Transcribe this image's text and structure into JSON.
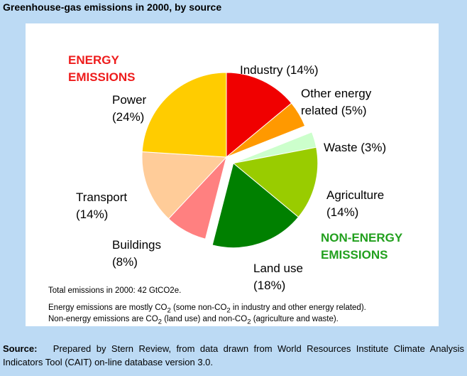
{
  "title": "Greenhouse-gas emissions in 2000, by source",
  "group_labels": {
    "energy_line1": "ENERGY",
    "energy_line2": "EMISSIONS",
    "energy_color": "#ee1c1c",
    "nonenergy_line1": "NON-ENERGY",
    "nonenergy_line2": "EMISSIONS",
    "nonenergy_color": "#22a01e"
  },
  "chart_data": {
    "type": "pie",
    "title": "Greenhouse-gas emissions in 2000, by source",
    "units": "percent of total",
    "slices": [
      {
        "name": "Industry",
        "value": 14,
        "label_line1": "Industry (14%)",
        "label_line2": "",
        "color": "#f00000",
        "group": "energy"
      },
      {
        "name": "Other energy related",
        "value": 5,
        "label_line1": "Other energy",
        "label_line2": "related (5%)",
        "color": "#ff9900",
        "group": "energy"
      },
      {
        "name": "Waste",
        "value": 3,
        "label_line1": "Waste (3%)",
        "label_line2": "",
        "color": "#ccffcc",
        "group": "non-energy"
      },
      {
        "name": "Agriculture",
        "value": 14,
        "label_line1": "Agriculture",
        "label_line2": "(14%)",
        "color": "#99cc00",
        "group": "non-energy"
      },
      {
        "name": "Land use",
        "value": 18,
        "label_line1": "Land use",
        "label_line2": "(18%)",
        "color": "#008000",
        "group": "non-energy"
      },
      {
        "name": "Buildings",
        "value": 8,
        "label_line1": "Buildings",
        "label_line2": "(8%)",
        "color": "#ff8080",
        "group": "energy"
      },
      {
        "name": "Transport",
        "value": 14,
        "label_line1": "Transport",
        "label_line2": "(14%)",
        "color": "#ffcc99",
        "group": "energy"
      },
      {
        "name": "Power",
        "value": 24,
        "label_line1": "Power",
        "label_line2": "(24%)",
        "color": "#ffcc00",
        "group": "energy"
      }
    ]
  },
  "notes": {
    "total": "Total emissions in 2000: 42 GtCO2e.",
    "energy_pre": "Energy emissions are mostly CO",
    "energy_post1": " (some non-CO",
    "energy_post2": " in industry and other energy related).",
    "nonenergy_pre": "Non-energy emissions are CO",
    "nonenergy_mid1": " (land use) and non-CO",
    "nonenergy_post": " (agriculture and waste).",
    "sub2": "2"
  },
  "source": {
    "label": "Source:",
    "text": "Prepared by Stern Review, from data drawn from World Resources Institute Climate Analysis Indicators Tool (CAIT) on-line database version 3.0."
  }
}
